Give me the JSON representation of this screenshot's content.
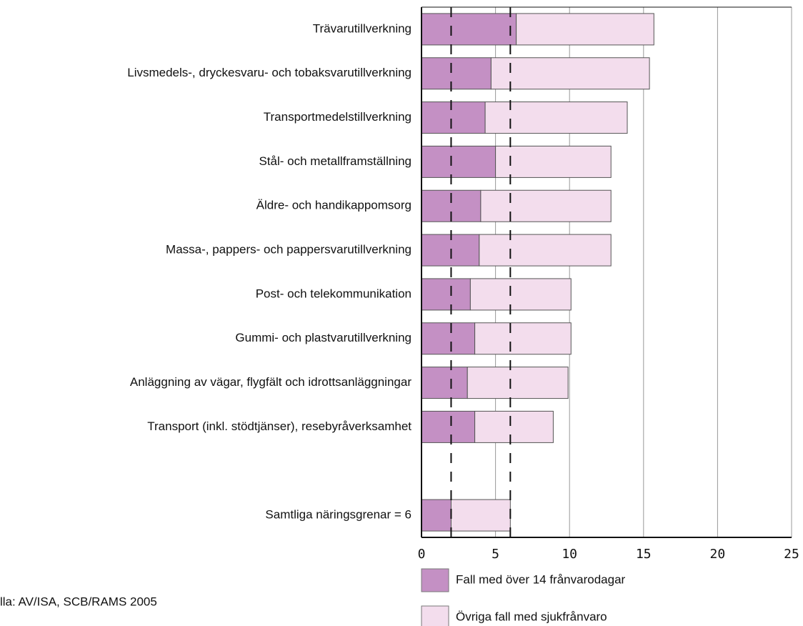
{
  "chart_data": {
    "type": "stacked_barh",
    "categories": [
      "Trävarutillverkning",
      "Livsmedels-, dryckesvaru- och tobaksvarutillverkning",
      "Transportmedelstillverkning",
      "Stål- och metallframställning",
      "Äldre- och handikappomsorg",
      "Massa-, pappers- och pappersvarutillverkning",
      "Post- och telekommunikation",
      "Gummi- och plastvarutillverkning",
      "Anläggning av vägar, flygfält och idrottsanläggningar",
      "Transport (inkl. stödtjänser), resebyråverksamhet",
      null,
      "Samtliga näringsgrenar = 6"
    ],
    "series": [
      {
        "name": "Fall med över 14 frånvarodagar",
        "color": "#c490c4",
        "values": [
          6.4,
          4.7,
          4.3,
          5.0,
          4.0,
          3.9,
          3.3,
          3.6,
          3.1,
          3.6,
          null,
          2.0
        ]
      },
      {
        "name": "Övriga fall med sjukfrånvaro",
        "color": "#f3dded",
        "values": [
          9.3,
          10.7,
          9.6,
          7.8,
          8.8,
          8.9,
          6.8,
          6.5,
          6.8,
          5.3,
          null,
          4.0
        ]
      }
    ],
    "xlim": [
      0,
      25
    ],
    "xticks": [
      0,
      5,
      10,
      15,
      20,
      25
    ],
    "grid": true,
    "reference_lines": [
      2,
      6
    ],
    "source": "lla: AV/ISA, SCB/RAMS 2005"
  }
}
